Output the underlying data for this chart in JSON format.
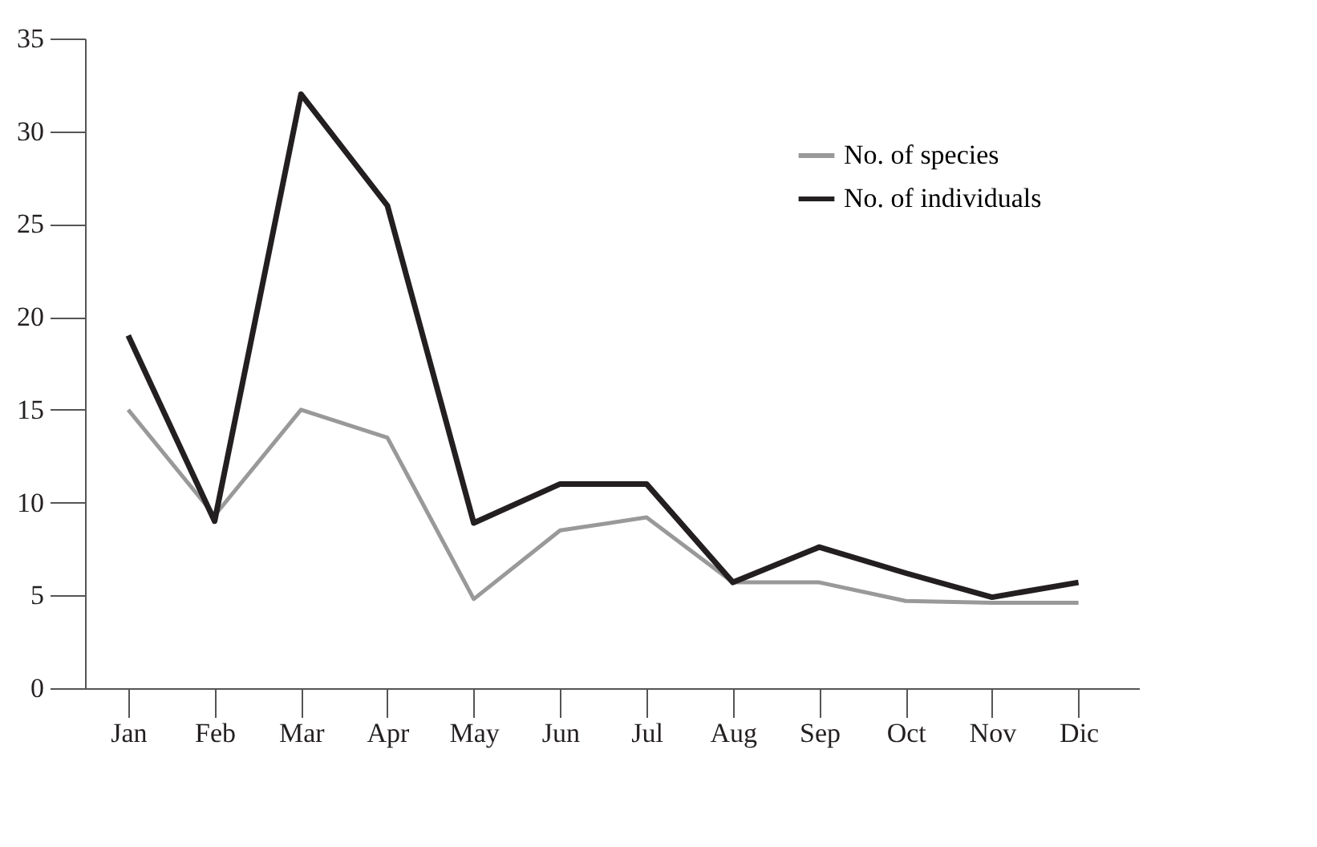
{
  "chart_data": {
    "type": "line",
    "categories": [
      "Jan",
      "Feb",
      "Mar",
      "Apr",
      "May",
      "Jun",
      "Jul",
      "Aug",
      "Sep",
      "Oct",
      "Nov",
      "Dic"
    ],
    "series": [
      {
        "name": "No. of species",
        "color": "#999999",
        "values": [
          15,
          9.3,
          15,
          13.5,
          4.8,
          8.5,
          9.2,
          5.7,
          5.7,
          4.7,
          4.6,
          4.6
        ]
      },
      {
        "name": "No. of individuals",
        "color": "#231f20",
        "values": [
          19,
          9,
          32,
          26,
          8.9,
          11,
          11,
          5.7,
          7.6,
          6.2,
          4.9,
          5.7
        ]
      }
    ],
    "ylim": [
      0,
      35
    ],
    "yticks": [
      0,
      5,
      10,
      15,
      20,
      25,
      30,
      35
    ],
    "grid": false,
    "legend": "top right",
    "marker": "none",
    "line_style": "solid"
  }
}
